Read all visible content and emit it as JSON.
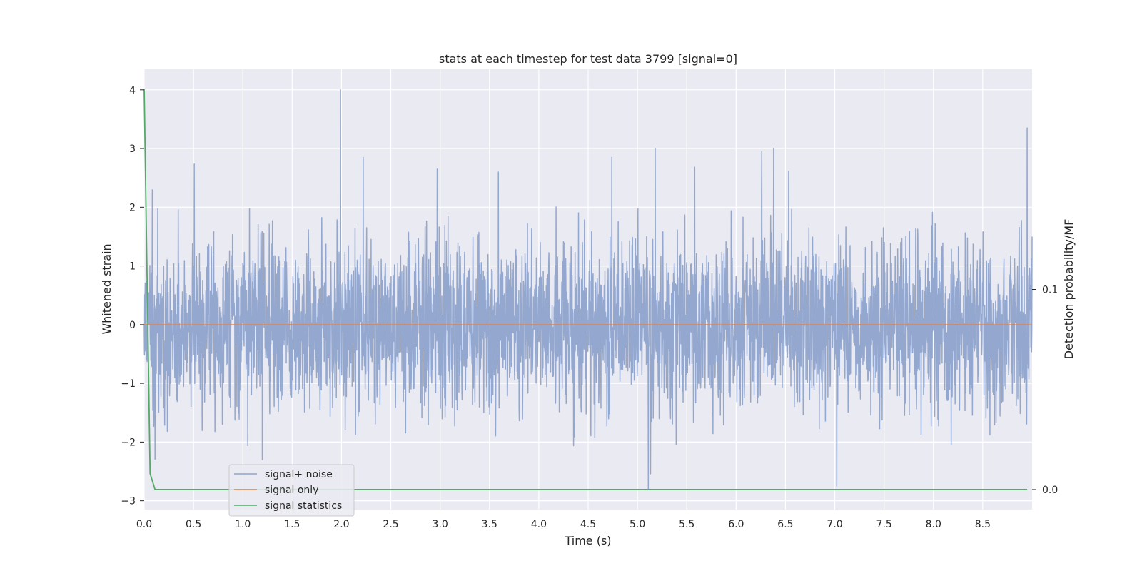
{
  "chart_data": {
    "type": "line",
    "title": "stats at each timestep for test data 3799 [signal=0]",
    "xlabel": "Time (s)",
    "ylabel": "Whitened strain",
    "y2label": "Detection probability/MF",
    "xlim": [
      0,
      9
    ],
    "ylim": [
      -3.15,
      4.35
    ],
    "y2lim": [
      -0.01,
      0.21
    ],
    "xticks": [
      "0.0",
      "0.5",
      "1.0",
      "1.5",
      "2.0",
      "2.5",
      "3.0",
      "3.5",
      "4.0",
      "4.5",
      "5.0",
      "5.5",
      "6.0",
      "6.5",
      "7.0",
      "7.5",
      "8.0",
      "8.5"
    ],
    "yticks": [
      "4",
      "3",
      "2",
      "1",
      "0",
      "−1",
      "−2",
      "−3"
    ],
    "y2ticks": [
      "0.1",
      "0.0"
    ],
    "grid": true,
    "legend_position": "lower-left",
    "series": [
      {
        "name": "signal+ noise",
        "color": "#8fa4cc",
        "axis": "left",
        "description_range": [
          -2.95,
          4.0
        ],
        "x": [
          0.0,
          1.99,
          2.22,
          2.97,
          3.59,
          4.74,
          5.11,
          5.18,
          6.26,
          6.38,
          7.02,
          8.95,
          9.0
        ],
        "y": [
          0.0,
          4.0,
          2.85,
          2.65,
          2.6,
          2.85,
          -2.8,
          3.0,
          2.95,
          3.0,
          -2.75,
          3.35,
          1.5
        ]
      },
      {
        "name": "signal only",
        "color": "#dd8452",
        "axis": "left",
        "x": [
          0.0,
          9.0
        ],
        "y": [
          0.0,
          0.0
        ]
      },
      {
        "name": "signal statistics",
        "color": "#55a868",
        "axis": "right",
        "x": [
          0.0,
          0.06,
          0.11,
          8.95
        ],
        "y": [
          0.2,
          0.008,
          0.0,
          0.0
        ]
      }
    ]
  }
}
